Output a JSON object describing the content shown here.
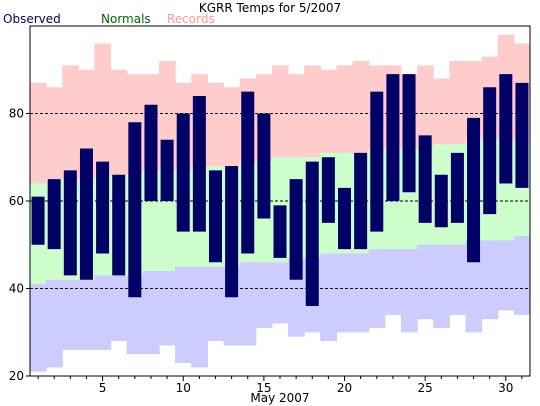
{
  "chart_data": {
    "type": "bar",
    "title": "KGRR Temps for 5/2007",
    "xlabel": "May 2007",
    "ylabel": "",
    "xlim": [
      1,
      31
    ],
    "ylim": [
      20,
      100
    ],
    "xticks": [
      5,
      10,
      15,
      20,
      25,
      30
    ],
    "yticks": [
      20,
      40,
      60,
      80
    ],
    "grid_y": [
      40,
      60,
      80
    ],
    "legend": [
      {
        "name": "Observed",
        "color": "#000066"
      },
      {
        "name": "Normals",
        "color": "#006600"
      },
      {
        "name": "Records",
        "color": "#ff9999"
      }
    ],
    "days": [
      1,
      2,
      3,
      4,
      5,
      6,
      7,
      8,
      9,
      10,
      11,
      12,
      13,
      14,
      15,
      16,
      17,
      18,
      19,
      20,
      21,
      22,
      23,
      24,
      25,
      26,
      27,
      28,
      29,
      30,
      31
    ],
    "series": [
      {
        "name": "Observed",
        "color": "#000066",
        "high": [
          61,
          65,
          67,
          72,
          69,
          66,
          78,
          82,
          74,
          80,
          84,
          67,
          68,
          85,
          80,
          59,
          65,
          69,
          70,
          63,
          71,
          85,
          89,
          89,
          75,
          66,
          71,
          79,
          86,
          89,
          87
        ],
        "low": [
          50,
          49,
          43,
          42,
          48,
          43,
          38,
          60,
          60,
          53,
          53,
          46,
          38,
          48,
          56,
          47,
          42,
          36,
          55,
          49,
          49,
          53,
          60,
          62,
          55,
          54,
          55,
          46,
          57,
          64,
          63
        ]
      },
      {
        "name": "Normals",
        "color": "#ccffcc",
        "high": [
          64,
          65,
          65,
          65,
          66,
          66,
          66,
          67,
          67,
          67,
          68,
          68,
          68,
          69,
          69,
          70,
          70,
          70,
          71,
          71,
          71,
          72,
          72,
          72,
          72,
          73,
          73,
          74,
          74,
          74,
          74
        ],
        "low": [
          41,
          42,
          42,
          42,
          43,
          43,
          43,
          44,
          44,
          45,
          45,
          45,
          45,
          46,
          46,
          46,
          47,
          47,
          48,
          48,
          48,
          49,
          49,
          49,
          50,
          50,
          50,
          51,
          51,
          51,
          52
        ]
      },
      {
        "name": "Records",
        "color": "#ffcccc",
        "high": [
          87,
          86,
          91,
          90,
          96,
          90,
          89,
          89,
          92,
          87,
          89,
          87,
          86,
          88,
          89,
          91,
          89,
          91,
          90,
          91,
          92,
          91,
          91,
          89,
          91,
          88,
          92,
          92,
          93,
          98,
          96
        ],
        "low": [
          21,
          22,
          26,
          26,
          26,
          28,
          25,
          25,
          27,
          23,
          22,
          28,
          27,
          27,
          31,
          32,
          29,
          30,
          28,
          30,
          30,
          31,
          34,
          30,
          33,
          31,
          34,
          30,
          33,
          35,
          34
        ]
      }
    ],
    "colors": {
      "record_band": "#ffcccc",
      "normal_band": "#ccffcc",
      "below_normal_band": "#ccccff",
      "observed_bar": "#000066",
      "grid": "#000000",
      "text": "#000000"
    }
  }
}
